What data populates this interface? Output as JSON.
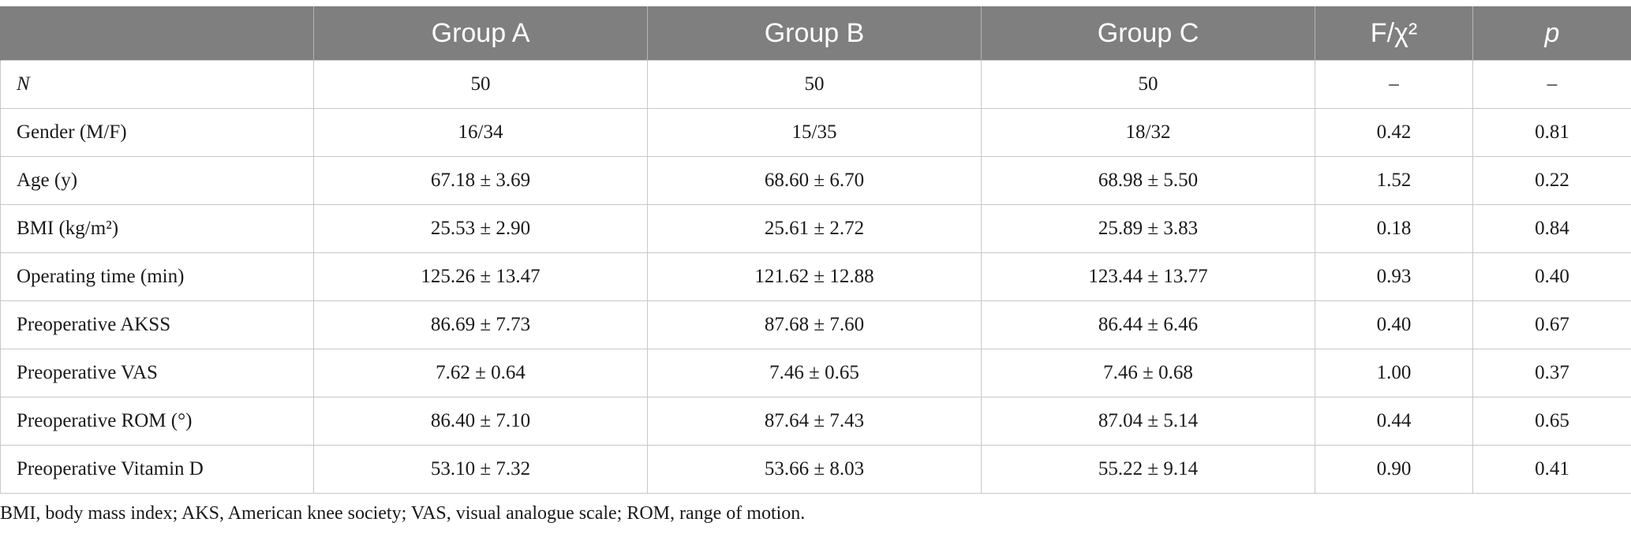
{
  "table": {
    "headers": [
      "",
      "Group A",
      "Group B",
      "Group C",
      "F/χ²",
      "p"
    ],
    "rows": [
      {
        "label": "N",
        "values": [
          "50",
          "50",
          "50",
          "–",
          "–"
        ]
      },
      {
        "label": "Gender (M/F)",
        "values": [
          "16/34",
          "15/35",
          "18/32",
          "0.42",
          "0.81"
        ]
      },
      {
        "label": "Age (y)",
        "values": [
          "67.18 ± 3.69",
          "68.60 ± 6.70",
          "68.98 ± 5.50",
          "1.52",
          "0.22"
        ]
      },
      {
        "label": "BMI (kg/m²)",
        "values": [
          "25.53 ± 2.90",
          "25.61 ± 2.72",
          "25.89 ± 3.83",
          "0.18",
          "0.84"
        ]
      },
      {
        "label": "Operating time (min)",
        "values": [
          "125.26 ± 13.47",
          "121.62 ± 12.88",
          "123.44 ± 13.77",
          "0.93",
          "0.40"
        ]
      },
      {
        "label": "Preoperative AKSS",
        "values": [
          "86.69 ± 7.73",
          "87.68 ± 7.60",
          "86.44 ± 6.46",
          "0.40",
          "0.67"
        ]
      },
      {
        "label": "Preoperative VAS",
        "values": [
          "7.62 ± 0.64",
          "7.46 ± 0.65",
          "7.46 ± 0.68",
          "1.00",
          "0.37"
        ]
      },
      {
        "label": "Preoperative ROM (°)",
        "values": [
          "86.40 ± 7.10",
          "87.64 ± 7.43",
          "87.04 ± 5.14",
          "0.44",
          "0.65"
        ]
      },
      {
        "label": "Preoperative Vitamin D",
        "values": [
          "53.10 ± 7.32",
          "53.66 ± 8.03",
          "55.22 ± 9.14",
          "0.90",
          "0.41"
        ]
      }
    ]
  },
  "footnote": "BMI, body mass index; AKS, American knee society; VAS, visual analogue scale; ROM, range of motion.",
  "colors": {
    "header_bg": "#7f7f7f",
    "header_text": "#ffffff",
    "grid": "#c8c8c8"
  }
}
